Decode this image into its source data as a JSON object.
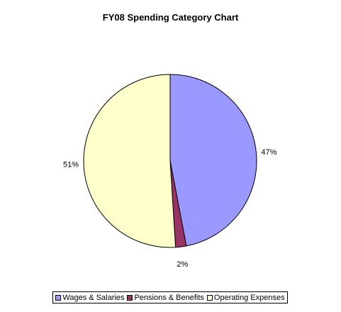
{
  "chart_data": {
    "type": "pie",
    "title": "FY08 Spending Category Chart",
    "slices": [
      {
        "label": "Wages & Salaries",
        "value": 47,
        "value_label": "47%",
        "color": "#9999ff"
      },
      {
        "label": "Pensions & Benefits",
        "value": 2,
        "value_label": "2%",
        "color": "#993366"
      },
      {
        "label": "Operating Expenses",
        "value": 51,
        "value_label": "51%",
        "color": "#ffffcc"
      }
    ],
    "legend_position": "bottom"
  }
}
